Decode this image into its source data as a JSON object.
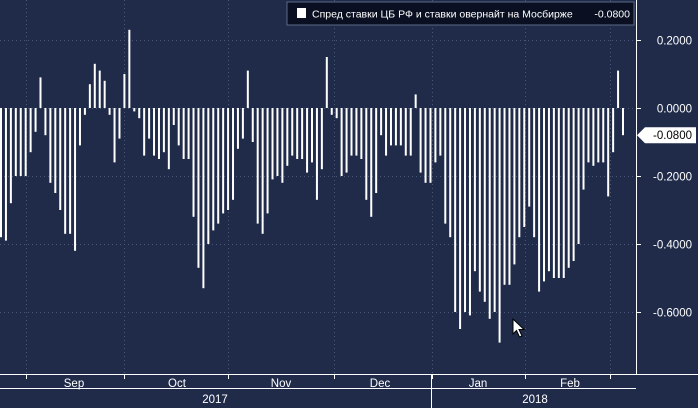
{
  "legend": {
    "label": "Спред ставки ЦБ РФ и ставки овернайт на Мосбирже",
    "last_value": "-0.0800"
  },
  "last_value_tag": "-0.0800",
  "colors": {
    "background": "#1f2b49",
    "bars": "#ffffff",
    "grid": "#4a5878",
    "legend_bg": "#0a1022",
    "axis_text": "#ffffff"
  },
  "chart_data": {
    "type": "bar",
    "title": "",
    "xlabel": "",
    "ylabel": "",
    "ylim": [
      -0.75,
      0.3
    ],
    "yticks": [
      "0.2000",
      "0.0000",
      "-0.2000",
      "-0.4000",
      "-0.6000"
    ],
    "ytick_values": [
      0.2,
      0.0,
      -0.2,
      -0.4,
      -0.6
    ],
    "months": [
      "Sep",
      "Oct",
      "Nov",
      "Dec",
      "Jan",
      "Feb"
    ],
    "years": [
      "2017",
      "2018"
    ],
    "grid": true,
    "legend_position": "top",
    "series": [
      {
        "name": "Спред ставки ЦБ РФ и ставки овернайт на Мосбирже",
        "values": [
          -0.38,
          -0.39,
          -0.28,
          -0.2,
          -0.2,
          -0.2,
          -0.13,
          -0.07,
          0.09,
          -0.08,
          -0.22,
          -0.25,
          -0.3,
          -0.37,
          -0.37,
          -0.42,
          -0.11,
          -0.02,
          0.07,
          0.13,
          0.11,
          0.08,
          -0.02,
          -0.16,
          -0.09,
          0.1,
          0.23,
          -0.01,
          -0.03,
          -0.14,
          -0.09,
          -0.14,
          -0.15,
          -0.13,
          -0.18,
          -0.05,
          -0.11,
          -0.15,
          -0.15,
          -0.32,
          -0.47,
          -0.53,
          -0.4,
          -0.36,
          -0.34,
          -0.31,
          -0.3,
          -0.27,
          -0.12,
          -0.09,
          0.11,
          -0.1,
          -0.34,
          -0.37,
          -0.31,
          -0.21,
          -0.2,
          -0.22,
          -0.17,
          -0.14,
          -0.15,
          -0.15,
          -0.19,
          -0.16,
          -0.27,
          -0.18,
          0.15,
          -0.02,
          -0.03,
          -0.2,
          -0.19,
          -0.14,
          -0.14,
          -0.15,
          -0.27,
          -0.32,
          -0.25,
          -0.08,
          -0.14,
          -0.11,
          -0.11,
          -0.11,
          -0.14,
          -0.14,
          0.04,
          -0.19,
          -0.22,
          -0.22,
          -0.16,
          -0.14,
          -0.34,
          -0.38,
          -0.6,
          -0.65,
          -0.6,
          -0.61,
          -0.48,
          -0.54,
          -0.57,
          -0.62,
          -0.6,
          -0.69,
          -0.52,
          -0.52,
          -0.46,
          -0.38,
          -0.35,
          -0.29,
          -0.38,
          -0.54,
          -0.51,
          -0.48,
          -0.5,
          -0.5,
          -0.5,
          -0.47,
          -0.45,
          -0.4,
          -0.24,
          -0.16,
          -0.17,
          -0.16,
          -0.16,
          -0.26,
          -0.13,
          0.11,
          -0.08
        ]
      }
    ]
  }
}
